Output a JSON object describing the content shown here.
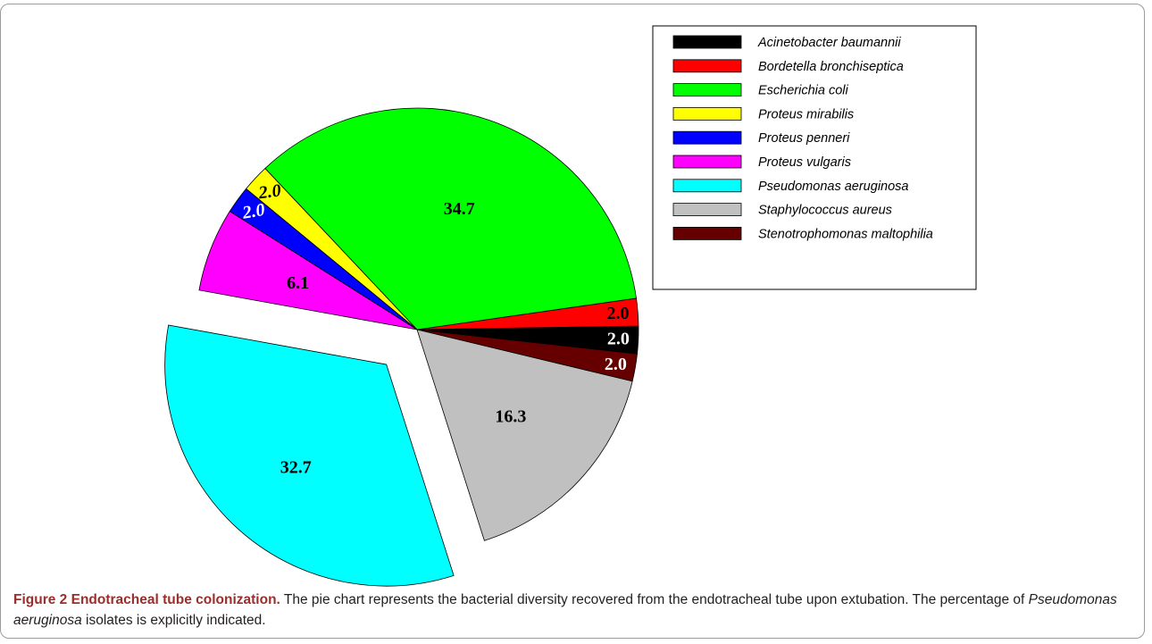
{
  "chart_data": {
    "type": "pie",
    "title": "",
    "categories": [
      "Acinetobacter baumannii",
      "Bordetella bronchiseptica",
      "Escherichia coli",
      "Proteus mirabilis",
      "Proteus penneri",
      "Proteus vulgaris",
      "Pseudomonas aeruginosa",
      "Staphylococcus aureus",
      "Stenotrophomonas maltophilia"
    ],
    "values": [
      2.0,
      2.0,
      34.7,
      2.0,
      2.0,
      6.1,
      32.7,
      16.3,
      2.0
    ],
    "value_labels": [
      "2.0",
      "2.0",
      "34.7",
      "2.0",
      "2.0",
      "6.1",
      "32.7",
      "16.3",
      "2.0"
    ],
    "colors": [
      "#000000",
      "#ff0000",
      "#00ff00",
      "#ffff00",
      "#0000ff",
      "#ff00ff",
      "#00ffff",
      "#c0c0c0",
      "#660000"
    ],
    "label_colors": [
      "#ffffff",
      "#000000",
      "#000000",
      "#000000",
      "#ffffff",
      "#000000",
      "#000000",
      "#000000",
      "#ffffff"
    ],
    "exploded_slice": "Pseudomonas aeruginosa",
    "legend_position": "top-right"
  },
  "caption": {
    "label": "Figure 2",
    "title": "Endotracheal tube colonization.",
    "text_before_italic": "The pie chart represents the bacterial diversity recovered from the endotracheal tube upon extubation. The percentage of",
    "italic_species": "Pseudomonas aeruginosa",
    "text_after_italic": "isolates is explicitly indicated."
  }
}
